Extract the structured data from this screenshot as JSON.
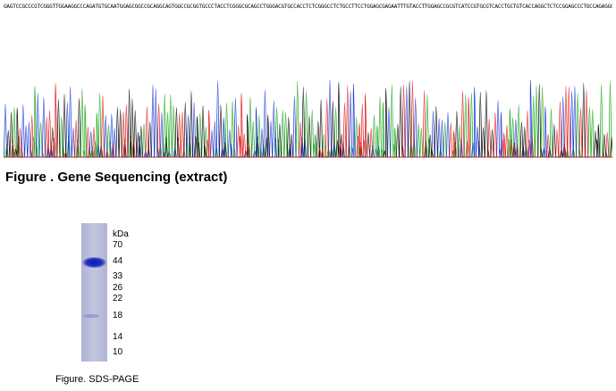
{
  "sequencing": {
    "sequence_text": "GAGTCCGCCCGTCGGGTTGGAAGGCCCAGATGTGCAATGGAGCGGCCGCAGGCAGTGGCCGCGGTGCCCTACCTCGGGCGCAGCCTGGGACGTGCCACCTCTCGGGCCTCTGCCTTCCTGGAGCGAGAATTTGTACCTTGGAGCCGCGTCATCCGTGCGTCACCTGCTGTCACCAGGCTCTCCGGAGCCCTGCCAGAGGCAGCCCAGGCGGTTTGGCCTCTGA",
    "channel_colors": {
      "A": "#1fa81f",
      "C": "#1f3fd6",
      "G": "#111111",
      "T": "#e02020"
    },
    "caption": "Figure . Gene Sequencing (extract)"
  },
  "sds_page": {
    "unit_label": "kDa",
    "markers": [
      "70",
      "44",
      "33",
      "26",
      "22",
      "18",
      "14",
      "10"
    ],
    "caption": "Figure. SDS-PAGE"
  }
}
